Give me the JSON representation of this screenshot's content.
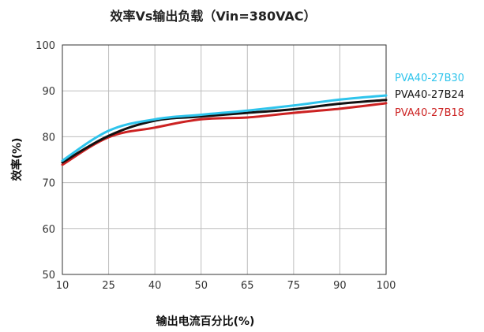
{
  "chart_data": {
    "type": "line",
    "title": "效率Vs输出负载（Vin=380VAC）",
    "xlabel": "输出电流百分比(%)",
    "ylabel": "效率(%)",
    "categories": [
      "10",
      "25",
      "40",
      "50",
      "65",
      "75",
      "90",
      "100"
    ],
    "y_ticks": [
      "100",
      "90",
      "80",
      "70",
      "60",
      "50"
    ],
    "ylim": [
      50,
      100
    ],
    "grid": true,
    "legend_position": "right",
    "series": [
      {
        "name": "PVA40-27B30",
        "color": "#2ec4ec",
        "values": [
          74.8,
          81.3,
          83.8,
          84.8,
          85.7,
          86.8,
          88.1,
          89.0
        ]
      },
      {
        "name": "PVA40-27B24",
        "color": "#111111",
        "values": [
          74.4,
          80.2,
          83.5,
          84.4,
          85.2,
          86.0,
          87.2,
          88.0
        ]
      },
      {
        "name": "PVA40-27B18",
        "color": "#cc2222",
        "values": [
          73.9,
          79.9,
          82.0,
          83.8,
          84.2,
          85.2,
          86.1,
          87.3
        ]
      }
    ]
  }
}
